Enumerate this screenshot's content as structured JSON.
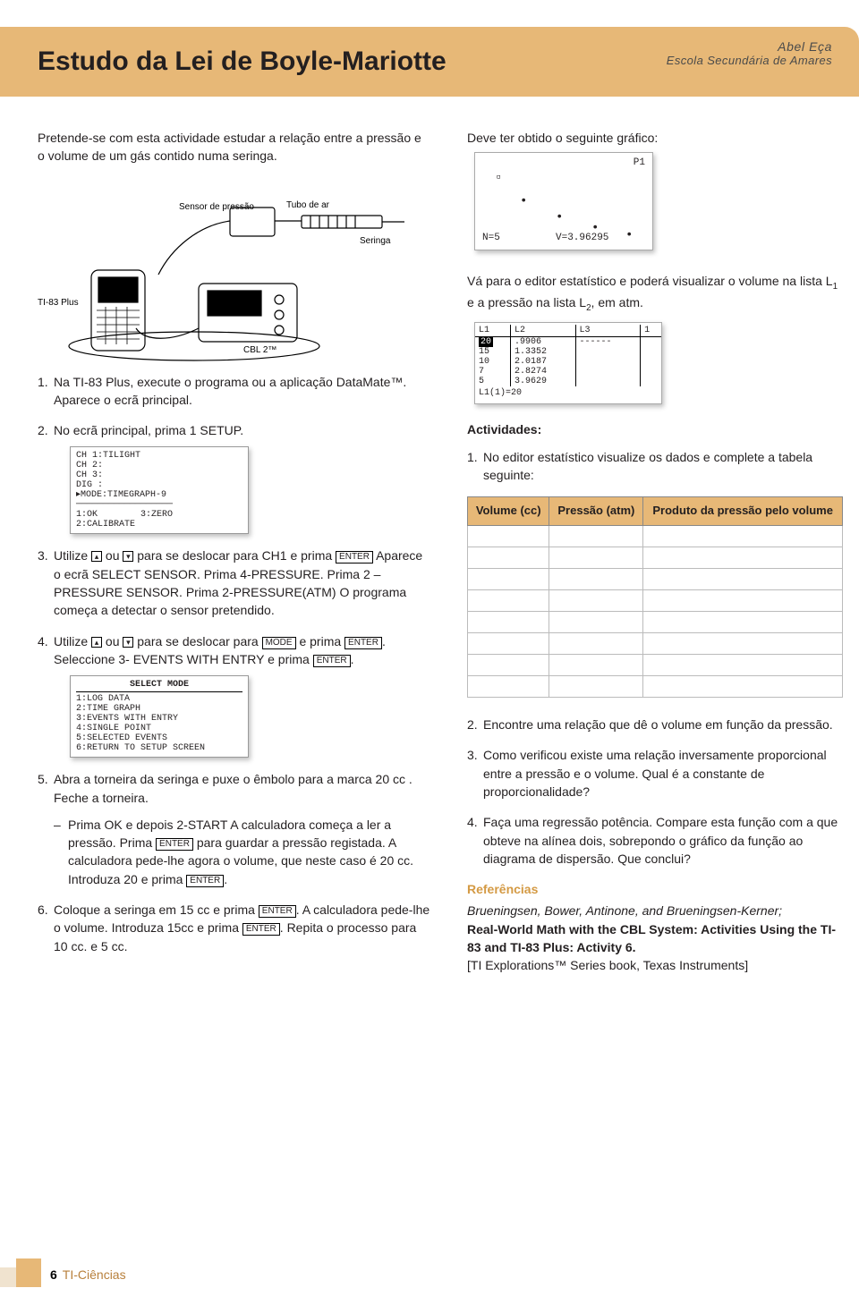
{
  "header": {
    "title": "Estudo da Lei de Boyle-Mariotte",
    "author": "Abel Eça",
    "school": "Escola Secundária de Amares",
    "band_color": "#e7b877",
    "title_fontsize": 30
  },
  "left": {
    "intro": "Pretende-se com esta actividade estudar a relação entre a pressão e o volume de um gás contido numa seringa.",
    "figure_labels": {
      "sensor": "Sensor de pressão",
      "tube": "Tubo de ar",
      "syringe": "Seringa",
      "calc": "TI-83 Plus",
      "cbl": "CBL 2™"
    },
    "steps": {
      "s1": "Na TI-83 Plus, execute o programa ou a aplicação DataMate™.  Aparece o ecrã principal.",
      "s2": "No ecrã principal, prima  1 SETUP.",
      "s3a": "Utilize ",
      "s3b": " ou ",
      "s3c": " para se deslocar para CH1 e prima ",
      "s3d": " Aparece o ecrã  SELECT SENSOR. Prima 4-PRESSURE. Prima 2 – PRESSURE SENSOR. Prima 2-PRESSURE(ATM) O programa começa a detectar o sensor pretendido.",
      "s4a": "Utilize ",
      "s4b": " ou ",
      "s4c": " para se deslocar para ",
      "s4d": " e prima ",
      "s4e": ". Seleccione 3- EVENTS WITH ENTRY e prima ",
      "s4f": ".",
      "s5": "Abra a torneira da seringa e puxe o êmbolo para a marca 20 cc . Feche a torneira.",
      "dash1a": "Prima OK e depois 2-START  A calculadora começa a ler a pressão. Prima ",
      "dash1b": " para guardar a pressão registada. A calculadora pede-lhe agora o volume, que neste caso é 20 cc. Introduza 20 e prima ",
      "dash1c": ".",
      "s6a": "Coloque a seringa em 15 cc e prima ",
      "s6b": ". A calculadora pede-lhe o volume. Introduza 15cc e prima ",
      "s6c": ". Repita o processo para 10 cc. e 5 cc."
    },
    "keys": {
      "enter": "ENTER",
      "mode": "MODE",
      "up": "▴",
      "down": "▾"
    },
    "screen_setup": "CH 1:TILIGHT\nCH 2:\nCH 3:\nDIG :\n▸MODE:TIMEGRAPH-9\n──────────────────\n1:OK        3:ZERO\n2:CALIBRATE",
    "screen_mode_title": "SELECT MODE",
    "screen_mode_body": "1:LOG DATA\n2:TIME GRAPH\n3:EVENTS WITH ENTRY\n4:SINGLE POINT\n5:SELECTED EVENTS\n6:RETURN TO SETUP SCREEN"
  },
  "right": {
    "graph_caption": "Deve ter obtido o seguinte gráfico:",
    "graph_labels": {
      "p1": "P1",
      "n": "N=5",
      "v": "V=3.96295"
    },
    "stat_caption_a": "Vá para o editor estatístico e poderá visualizar o volume na lista L",
    "stat_caption_b": " e a pressão na lista L",
    "stat_caption_c": ", em atm.",
    "stat_cols": [
      "L1",
      "L2",
      "L3",
      "1"
    ],
    "stat_rows": [
      [
        "20",
        ".9906",
        ""
      ],
      [
        "15",
        "1.3352",
        ""
      ],
      [
        "10",
        "2.0187",
        ""
      ],
      [
        "7",
        "2.8274",
        ""
      ],
      [
        "5",
        "3.9629",
        ""
      ]
    ],
    "stat_hl": "20",
    "stat_foot": "L1(1)=20",
    "activities_head": "Actividades:",
    "act1": "No editor estatístico visualize os dados e complete a tabela seguinte:",
    "table_headers": [
      "Volume (cc)",
      "Pressão (atm)",
      "Produto da pressão pelo volume"
    ],
    "table_blank_rows": 8,
    "act2": "Encontre uma relação que  dê o volume em função da pressão.",
    "act3": "Como verificou existe uma relação inversamente proporcional entre a pressão e o volume. Qual é a constante de proporcionalidade?",
    "act4": "Faça uma regressão potência. Compare esta função com a que obteve na alínea dois, sobrepondo o gráfico da função ao diagrama de dispersão. Que conclui?",
    "ref_head": "Referências",
    "ref_authors": "Brueningsen, Bower, Antinone, and Brueningsen-Kerner;",
    "ref_title": "Real-World Math with the CBL System: Activities Using the TI-83 and TI-83 Plus: Activity 6.",
    "ref_note": "[TI Explorations™ Series book, Texas Instruments]"
  },
  "footer": {
    "page": "6",
    "magazine": "TI-Ciências",
    "accent1": "#f0e3cf",
    "accent2": "#e7b877"
  },
  "colors": {
    "text": "#231f20",
    "table_border": "#bbbbbb",
    "table_header_bg": "#e7b877",
    "ref_head": "#d49a44"
  }
}
